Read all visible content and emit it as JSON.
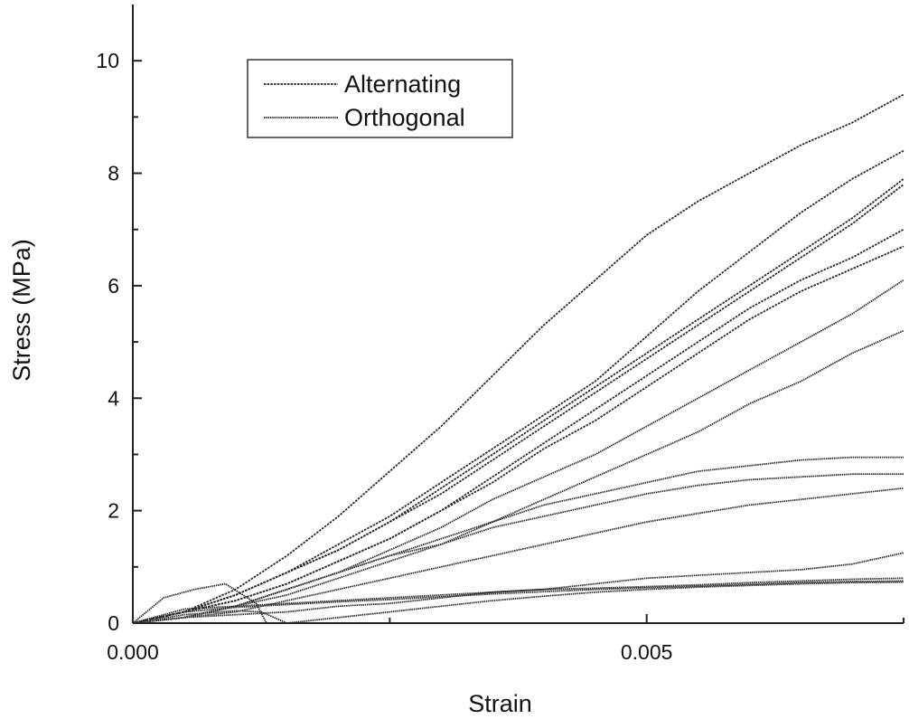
{
  "chart_data": {
    "type": "line",
    "title": "",
    "xlabel": "Strain",
    "ylabel": "Stress (MPa)",
    "xlim": [
      0,
      0.0075
    ],
    "ylim": [
      0,
      11
    ],
    "x_ticks": [
      0.0,
      0.005
    ],
    "x_tick_labels": [
      "0.000",
      "0.005"
    ],
    "y_ticks": [
      0,
      2,
      4,
      6,
      8,
      10
    ],
    "y_tick_labels": [
      "0",
      "2",
      "4",
      "6",
      "8",
      "10"
    ],
    "grid": false,
    "legend_position": "top-left",
    "legend": [
      {
        "label": "Alternating",
        "color": "#222222"
      },
      {
        "label": "Orthogonal",
        "color": "#222222"
      }
    ],
    "series": [
      {
        "group": "Alternating",
        "x": [
          0,
          0.0005,
          0.001,
          0.0015,
          0.002,
          0.0025,
          0.003,
          0.0035,
          0.004,
          0.0045,
          0.005,
          0.0055,
          0.006,
          0.0065,
          0.007,
          0.0075
        ],
        "values": [
          0,
          0.2,
          0.6,
          1.2,
          1.9,
          2.7,
          3.5,
          4.4,
          5.3,
          6.1,
          6.9,
          7.5,
          8.0,
          8.5,
          8.9,
          9.4
        ]
      },
      {
        "group": "Alternating",
        "x": [
          0,
          0.0005,
          0.001,
          0.0015,
          0.002,
          0.0025,
          0.003,
          0.0035,
          0.004,
          0.0045,
          0.005,
          0.0055,
          0.006,
          0.0065,
          0.007,
          0.0075
        ],
        "values": [
          0,
          0.2,
          0.5,
          0.9,
          1.4,
          1.9,
          2.5,
          3.1,
          3.7,
          4.3,
          5.1,
          5.9,
          6.6,
          7.3,
          7.9,
          8.4
        ]
      },
      {
        "group": "Alternating",
        "x": [
          0,
          0.0005,
          0.001,
          0.0015,
          0.002,
          0.0025,
          0.003,
          0.0035,
          0.004,
          0.0045,
          0.005,
          0.0055,
          0.006,
          0.0065,
          0.007,
          0.0075
        ],
        "values": [
          0,
          0.2,
          0.5,
          0.9,
          1.3,
          1.8,
          2.4,
          3.0,
          3.6,
          4.2,
          4.8,
          5.4,
          6.0,
          6.6,
          7.2,
          7.9
        ]
      },
      {
        "group": "Alternating",
        "x": [
          0,
          0.0005,
          0.001,
          0.0015,
          0.002,
          0.0025,
          0.003,
          0.0035,
          0.004,
          0.0045,
          0.005,
          0.0055,
          0.006,
          0.0065,
          0.007,
          0.0075
        ],
        "values": [
          0,
          0.2,
          0.5,
          0.9,
          1.3,
          1.8,
          2.3,
          2.9,
          3.5,
          4.1,
          4.7,
          5.3,
          5.9,
          6.5,
          7.1,
          7.8
        ]
      },
      {
        "group": "Alternating",
        "x": [
          0,
          0.0005,
          0.001,
          0.0015,
          0.002,
          0.0025,
          0.003,
          0.0035,
          0.004,
          0.0045,
          0.005,
          0.0055,
          0.006,
          0.0065,
          0.007,
          0.0075
        ],
        "values": [
          0,
          0.2,
          0.4,
          0.7,
          1.1,
          1.5,
          2.0,
          2.6,
          3.2,
          3.8,
          4.4,
          5.0,
          5.6,
          6.1,
          6.5,
          7.0
        ]
      },
      {
        "group": "Alternating",
        "x": [
          0,
          0.0005,
          0.001,
          0.0015,
          0.002,
          0.0025,
          0.003,
          0.0035,
          0.004,
          0.0045,
          0.005,
          0.0055,
          0.006,
          0.0065,
          0.007,
          0.0075
        ],
        "values": [
          0,
          0.2,
          0.4,
          0.7,
          1.1,
          1.5,
          2.0,
          2.5,
          3.1,
          3.6,
          4.2,
          4.8,
          5.4,
          5.9,
          6.3,
          6.7
        ]
      },
      {
        "group": "Orthogonal",
        "x": [
          0,
          0.0005,
          0.001,
          0.0015,
          0.002,
          0.0025,
          0.003,
          0.0035,
          0.004,
          0.0045,
          0.005,
          0.0055,
          0.006,
          0.0065,
          0.007,
          0.0075
        ],
        "values": [
          0,
          0.1,
          0.3,
          0.6,
          0.9,
          1.3,
          1.7,
          2.2,
          2.6,
          3.0,
          3.5,
          4.0,
          4.5,
          5.0,
          5.5,
          6.1
        ]
      },
      {
        "group": "Orthogonal",
        "x": [
          0,
          0.0005,
          0.001,
          0.0015,
          0.002,
          0.0025,
          0.003,
          0.0035,
          0.004,
          0.0045,
          0.005,
          0.0055,
          0.006,
          0.0065,
          0.007,
          0.0075
        ],
        "values": [
          0,
          0.1,
          0.3,
          0.5,
          0.8,
          1.1,
          1.4,
          1.8,
          2.2,
          2.6,
          3.0,
          3.4,
          3.9,
          4.3,
          4.8,
          5.2
        ]
      },
      {
        "group": "Orthogonal",
        "x": [
          0,
          0.0005,
          0.001,
          0.0015,
          0.002,
          0.0025,
          0.003,
          0.0035,
          0.004,
          0.0045,
          0.005,
          0.0055,
          0.006,
          0.0065,
          0.007,
          0.0075
        ],
        "values": [
          0,
          0.1,
          0.3,
          0.6,
          0.9,
          1.2,
          1.5,
          1.8,
          2.1,
          2.3,
          2.5,
          2.7,
          2.8,
          2.9,
          2.95,
          2.95
        ]
      },
      {
        "group": "Orthogonal",
        "x": [
          0,
          0.0005,
          0.001,
          0.0015,
          0.002,
          0.0025,
          0.003,
          0.0035,
          0.004,
          0.0045,
          0.005,
          0.0055,
          0.006,
          0.0065,
          0.007,
          0.0075
        ],
        "values": [
          0,
          0.1,
          0.3,
          0.6,
          0.9,
          1.2,
          1.4,
          1.7,
          1.9,
          2.1,
          2.3,
          2.45,
          2.55,
          2.6,
          2.65,
          2.65
        ]
      },
      {
        "group": "Orthogonal",
        "x": [
          0,
          0.0005,
          0.001,
          0.0015,
          0.002,
          0.0025,
          0.003,
          0.0035,
          0.004,
          0.0045,
          0.005,
          0.0055,
          0.006,
          0.0065,
          0.007,
          0.0075
        ],
        "values": [
          0,
          0.1,
          0.2,
          0.4,
          0.6,
          0.8,
          1.0,
          1.2,
          1.4,
          1.6,
          1.8,
          1.95,
          2.1,
          2.2,
          2.3,
          2.4
        ]
      },
      {
        "group": "Orthogonal",
        "x": [
          0,
          0.0005,
          0.001,
          0.0015,
          0.002,
          0.0025,
          0.003,
          0.0035,
          0.004,
          0.0045,
          0.005,
          0.0055,
          0.006,
          0.0065,
          0.007,
          0.0075
        ],
        "values": [
          0,
          0.1,
          0.15,
          0.2,
          0.3,
          0.35,
          0.45,
          0.55,
          0.6,
          0.7,
          0.8,
          0.85,
          0.9,
          0.95,
          1.05,
          1.25
        ]
      },
      {
        "group": "Orthogonal",
        "x": [
          0,
          0.0005,
          0.001,
          0.0015,
          0.002,
          0.0025,
          0.003,
          0.0035,
          0.004,
          0.0045,
          0.005,
          0.0055,
          0.006,
          0.0065,
          0.007,
          0.0075
        ],
        "values": [
          0,
          0.25,
          0.3,
          0.35,
          0.4,
          0.45,
          0.5,
          0.55,
          0.6,
          0.62,
          0.65,
          0.68,
          0.72,
          0.75,
          0.78,
          0.8
        ]
      },
      {
        "group": "Orthogonal",
        "x": [
          0,
          0.0005,
          0.001,
          0.0015,
          0.002,
          0.0025,
          0.003,
          0.0035,
          0.004,
          0.0045,
          0.005,
          0.0055,
          0.006,
          0.0065,
          0.007,
          0.0075
        ],
        "values": [
          0,
          0.2,
          0.28,
          0.33,
          0.38,
          0.42,
          0.47,
          0.52,
          0.56,
          0.6,
          0.63,
          0.66,
          0.69,
          0.72,
          0.74,
          0.75
        ]
      },
      {
        "group": "Orthogonal",
        "x": [
          0,
          0.0005,
          0.001,
          0.00125,
          0.0015,
          0.002,
          0.0025,
          0.003,
          0.0035,
          0.004,
          0.0045,
          0.005,
          0.0055,
          0.006,
          0.0065,
          0.007,
          0.0075
        ],
        "values": [
          0,
          0.15,
          0.22,
          0.2,
          0.0,
          0.1,
          0.2,
          0.3,
          0.4,
          0.48,
          0.55,
          0.6,
          0.64,
          0.67,
          0.7,
          0.72,
          0.73
        ]
      },
      {
        "group": "Orthogonal",
        "x": [
          0,
          0.0003,
          0.0006,
          0.0009,
          0.0012,
          0.0013
        ],
        "values": [
          0,
          0.45,
          0.6,
          0.7,
          0.35,
          0.0
        ]
      }
    ]
  }
}
